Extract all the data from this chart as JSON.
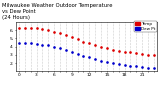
{
  "title": "Milwaukee Weather Outdoor Temperature vs Dew Point (24 Hours)",
  "temp_x": [
    0,
    1,
    2,
    3,
    4,
    5,
    6,
    7,
    8,
    9,
    10,
    11,
    12,
    13,
    14,
    15,
    16,
    17,
    18,
    19,
    20,
    21,
    22,
    23
  ],
  "temp_y": [
    63,
    63,
    63,
    62,
    61,
    60,
    58,
    56,
    54,
    52,
    49,
    46,
    44,
    42,
    40,
    38,
    36,
    35,
    34,
    33,
    32,
    31,
    30,
    30
  ],
  "dew_x": [
    0,
    1,
    2,
    3,
    4,
    5,
    6,
    7,
    8,
    9,
    10,
    11,
    12,
    13,
    14,
    15,
    16,
    17,
    18,
    19,
    20,
    21,
    22,
    23
  ],
  "dew_y": [
    44,
    44,
    44,
    43,
    42,
    42,
    40,
    38,
    36,
    34,
    31,
    29,
    27,
    25,
    23,
    21,
    20,
    19,
    18,
    17,
    16,
    15,
    14,
    14
  ],
  "temp_color": "#dd0000",
  "dew_color": "#0000cc",
  "bg_color": "#ffffff",
  "grid_color": "#888888",
  "ylim": [
    10,
    70
  ],
  "xlim": [
    -0.5,
    23.5
  ],
  "ytick_vals": [
    20,
    30,
    40,
    50,
    60
  ],
  "ytick_labels": [
    "2.",
    "3.",
    "4.",
    "5.",
    "6."
  ],
  "legend_temp": "Temp",
  "legend_dew": "Dew Pt",
  "title_fontsize": 3.8,
  "tick_fontsize": 3.2,
  "legend_fontsize": 3.0
}
